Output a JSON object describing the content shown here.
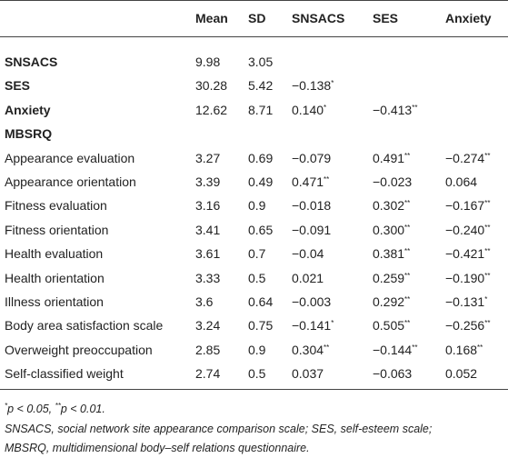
{
  "table": {
    "header": [
      "Mean",
      "SD",
      "SNSACS",
      "SES",
      "Anxiety"
    ],
    "rows": [
      {
        "label": "SNSACS",
        "bold": true,
        "cells": [
          "9.98",
          "3.05"
        ]
      },
      {
        "label": "SES",
        "bold": true,
        "cells": [
          "30.28",
          "5.42",
          "−0.138*"
        ]
      },
      {
        "label": "Anxiety",
        "bold": true,
        "cells": [
          "12.62",
          "8.71",
          "0.140*",
          "−0.413**"
        ]
      },
      {
        "label": "MBSRQ",
        "bold": true,
        "cells": []
      },
      {
        "label": "Appearance evaluation",
        "bold": false,
        "cells": [
          "3.27",
          "0.69",
          "−0.079",
          "0.491**",
          "−0.274**"
        ]
      },
      {
        "label": "Appearance orientation",
        "bold": false,
        "cells": [
          "3.39",
          "0.49",
          "0.471**",
          "−0.023",
          "0.064"
        ]
      },
      {
        "label": "Fitness evaluation",
        "bold": false,
        "cells": [
          "3.16",
          "0.9",
          "−0.018",
          "0.302**",
          "−0.167**"
        ]
      },
      {
        "label": "Fitness orientation",
        "bold": false,
        "cells": [
          "3.41",
          "0.65",
          "−0.091",
          "0.300**",
          "−0.240**"
        ]
      },
      {
        "label": "Health evaluation",
        "bold": false,
        "cells": [
          "3.61",
          "0.7",
          "−0.04",
          "0.381**",
          "−0.421**"
        ]
      },
      {
        "label": "Health orientation",
        "bold": false,
        "cells": [
          "3.33",
          "0.5",
          "0.021",
          "0.259**",
          "−0.190**"
        ]
      },
      {
        "label": "Illness orientation",
        "bold": false,
        "cells": [
          "3.6",
          "0.64",
          "−0.003",
          "0.292**",
          "−0.131*"
        ]
      },
      {
        "label": "Body area satisfaction scale",
        "bold": false,
        "cells": [
          "3.24",
          "0.75",
          "−0.141*",
          "0.505**",
          "−0.256**"
        ]
      },
      {
        "label": "Overweight preoccupation",
        "bold": false,
        "cells": [
          "2.85",
          "0.9",
          "0.304**",
          "−0.144**",
          "0.168**"
        ]
      },
      {
        "label": "Self-classified weight",
        "bold": false,
        "cells": [
          "2.74",
          "0.5",
          "0.037",
          "−0.063",
          "0.052"
        ]
      }
    ],
    "footnotes": [
      "*p < 0.05, **p < 0.01.",
      "SNSACS, social network site appearance comparison scale; SES, self-esteem scale;",
      "MBSRQ, multidimensional body–self relations questionnaire."
    ]
  }
}
